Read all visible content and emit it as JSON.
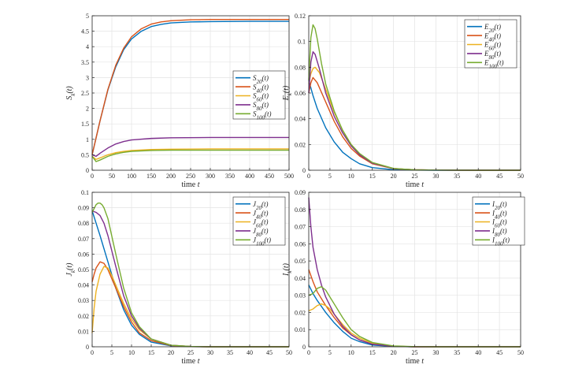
{
  "chart_data": [
    {
      "id": "S",
      "type": "line",
      "ylabel": "S_k(t)",
      "xlabel": "time t",
      "xlim": [
        0,
        500
      ],
      "ylim": [
        0,
        5
      ],
      "xticks": [
        0,
        50,
        100,
        150,
        200,
        250,
        300,
        350,
        400,
        450,
        500
      ],
      "yticks": [
        0,
        0.5,
        1,
        1.5,
        2,
        2.5,
        3,
        3.5,
        4,
        4.5,
        5
      ],
      "grid": true,
      "legend_position": "right-middle",
      "series": [
        {
          "name": "S_20(t)",
          "color": "#0072BD",
          "x": [
            0,
            10,
            20,
            40,
            60,
            80,
            100,
            125,
            150,
            175,
            200,
            250,
            300,
            400,
            500
          ],
          "y": [
            0.5,
            1.05,
            1.6,
            2.6,
            3.35,
            3.9,
            4.25,
            4.5,
            4.65,
            4.72,
            4.77,
            4.8,
            4.81,
            4.82,
            4.82
          ]
        },
        {
          "name": "S_40(t)",
          "color": "#D95319",
          "x": [
            0,
            10,
            20,
            40,
            60,
            80,
            100,
            125,
            150,
            175,
            200,
            250,
            300,
            400,
            500
          ],
          "y": [
            0.5,
            1.05,
            1.6,
            2.62,
            3.4,
            3.95,
            4.32,
            4.58,
            4.73,
            4.8,
            4.84,
            4.87,
            4.88,
            4.88,
            4.88
          ]
        },
        {
          "name": "S_60(t)",
          "color": "#EDB120",
          "x": [
            0,
            10,
            20,
            40,
            60,
            80,
            100,
            150,
            200,
            300,
            400,
            500
          ],
          "y": [
            0.45,
            0.35,
            0.4,
            0.5,
            0.57,
            0.61,
            0.64,
            0.67,
            0.68,
            0.69,
            0.69,
            0.69
          ]
        },
        {
          "name": "S_80(t)",
          "color": "#7E2F8E",
          "x": [
            0,
            10,
            20,
            40,
            60,
            80,
            100,
            150,
            200,
            300,
            400,
            500
          ],
          "y": [
            0.5,
            0.45,
            0.55,
            0.72,
            0.85,
            0.93,
            0.98,
            1.03,
            1.05,
            1.06,
            1.06,
            1.06
          ]
        },
        {
          "name": "S_100(t)",
          "color": "#77AC30",
          "x": [
            0,
            10,
            20,
            40,
            60,
            80,
            100,
            150,
            200,
            300,
            400,
            500
          ],
          "y": [
            0.45,
            0.28,
            0.33,
            0.45,
            0.53,
            0.58,
            0.61,
            0.64,
            0.65,
            0.65,
            0.65,
            0.65
          ]
        }
      ]
    },
    {
      "id": "E",
      "type": "line",
      "ylabel": "E_k(t)",
      "xlabel": "time t",
      "xlim": [
        0,
        50
      ],
      "ylim": [
        0,
        0.12
      ],
      "xticks": [
        0,
        5,
        10,
        15,
        20,
        25,
        30,
        35,
        40,
        45,
        50
      ],
      "yticks": [
        0,
        0.02,
        0.04,
        0.06,
        0.08,
        0.1,
        0.12
      ],
      "grid": true,
      "legend_position": "top-right",
      "series": [
        {
          "name": "E_20(t)",
          "color": "#0072BD",
          "x": [
            0,
            1,
            2,
            4,
            6,
            8,
            10,
            12,
            15,
            20,
            25,
            30,
            40,
            50
          ],
          "y": [
            0.07,
            0.058,
            0.048,
            0.033,
            0.022,
            0.014,
            0.009,
            0.005,
            0.002,
            0.0004,
            0.0001,
            0,
            0,
            0
          ]
        },
        {
          "name": "E_40(t)",
          "color": "#D95319",
          "x": [
            0,
            0.5,
            1,
            2,
            4,
            6,
            8,
            10,
            12,
            15,
            20,
            25,
            30,
            40,
            50
          ],
          "y": [
            0.06,
            0.068,
            0.072,
            0.068,
            0.053,
            0.038,
            0.026,
            0.017,
            0.011,
            0.005,
            0.0012,
            0.0003,
            0.0001,
            0,
            0
          ]
        },
        {
          "name": "E_60(t)",
          "color": "#EDB120",
          "x": [
            0,
            0.5,
            1,
            1.5,
            2.5,
            4,
            6,
            8,
            10,
            12,
            15,
            20,
            25,
            30,
            40,
            50
          ],
          "y": [
            0.067,
            0.075,
            0.079,
            0.08,
            0.076,
            0.063,
            0.045,
            0.031,
            0.02,
            0.012,
            0.0055,
            0.0013,
            0.0003,
            0.0001,
            0,
            0
          ]
        },
        {
          "name": "E_80(t)",
          "color": "#7E2F8E",
          "x": [
            0,
            0.5,
            1,
            1.5,
            2.5,
            4,
            6,
            8,
            10,
            12,
            15,
            20,
            25,
            30,
            40,
            50
          ],
          "y": [
            0.06,
            0.084,
            0.092,
            0.09,
            0.079,
            0.06,
            0.042,
            0.029,
            0.019,
            0.012,
            0.0055,
            0.0013,
            0.0003,
            0.0001,
            0,
            0
          ]
        },
        {
          "name": "E_100(t)",
          "color": "#77AC30",
          "x": [
            0,
            0.5,
            1,
            1.5,
            2,
            3,
            4,
            6,
            8,
            10,
            12,
            15,
            20,
            25,
            30,
            40,
            50
          ],
          "y": [
            0.07,
            0.103,
            0.113,
            0.11,
            0.102,
            0.083,
            0.067,
            0.046,
            0.031,
            0.02,
            0.013,
            0.006,
            0.0014,
            0.0003,
            0.0001,
            0,
            0
          ]
        }
      ]
    },
    {
      "id": "J",
      "type": "line",
      "ylabel": "J_k(t)",
      "xlabel": "time t",
      "xlim": [
        0,
        50
      ],
      "ylim": [
        0,
        0.1
      ],
      "xticks": [
        0,
        5,
        10,
        15,
        20,
        25,
        30,
        35,
        40,
        45,
        50
      ],
      "yticks": [
        0,
        0.01,
        0.02,
        0.03,
        0.04,
        0.05,
        0.06,
        0.07,
        0.08,
        0.09,
        0.1
      ],
      "grid": true,
      "legend_position": "top-right",
      "series": [
        {
          "name": "J_20(t)",
          "color": "#0072BD",
          "x": [
            0,
            1,
            2,
            4,
            6,
            8,
            10,
            12,
            15,
            20,
            25,
            30,
            40,
            50
          ],
          "y": [
            0.088,
            0.08,
            0.072,
            0.055,
            0.038,
            0.024,
            0.014,
            0.008,
            0.003,
            0.0006,
            0.0001,
            0,
            0,
            0
          ]
        },
        {
          "name": "J_40(t)",
          "color": "#D95319",
          "x": [
            0,
            0.5,
            1,
            2,
            3,
            4,
            6,
            8,
            10,
            12,
            15,
            20,
            25,
            30,
            40,
            50
          ],
          "y": [
            0.042,
            0.047,
            0.051,
            0.055,
            0.054,
            0.05,
            0.038,
            0.026,
            0.016,
            0.009,
            0.004,
            0.0008,
            0.0001,
            0,
            0,
            0
          ]
        },
        {
          "name": "J_60(t)",
          "color": "#EDB120",
          "x": [
            0,
            0.5,
            1,
            2,
            3,
            4,
            5,
            6,
            8,
            10,
            12,
            15,
            20,
            25,
            30,
            40,
            50
          ],
          "y": [
            0.009,
            0.025,
            0.036,
            0.047,
            0.052,
            0.051,
            0.046,
            0.04,
            0.028,
            0.018,
            0.011,
            0.005,
            0.001,
            0.0002,
            0,
            0,
            0
          ]
        },
        {
          "name": "J_80(t)",
          "color": "#7E2F8E",
          "x": [
            0,
            1,
            2,
            3,
            4,
            6,
            8,
            10,
            12,
            15,
            20,
            25,
            30,
            40,
            50
          ],
          "y": [
            0.088,
            0.087,
            0.085,
            0.08,
            0.072,
            0.052,
            0.033,
            0.02,
            0.012,
            0.005,
            0.001,
            0.0002,
            0,
            0,
            0
          ]
        },
        {
          "name": "J_100(t)",
          "color": "#77AC30",
          "x": [
            0,
            1,
            1.5,
            2,
            2.5,
            3,
            4,
            6,
            8,
            10,
            12,
            15,
            20,
            25,
            30,
            40,
            50
          ],
          "y": [
            0.087,
            0.092,
            0.093,
            0.093,
            0.092,
            0.09,
            0.083,
            0.06,
            0.038,
            0.022,
            0.013,
            0.005,
            0.001,
            0.0002,
            0,
            0,
            0
          ]
        }
      ]
    },
    {
      "id": "I",
      "type": "line",
      "ylabel": "I_k(t)",
      "xlabel": "time t",
      "xlim": [
        0,
        50
      ],
      "ylim": [
        0,
        0.09
      ],
      "xticks": [
        0,
        5,
        10,
        15,
        20,
        25,
        30,
        35,
        40,
        45,
        50
      ],
      "yticks": [
        0,
        0.01,
        0.02,
        0.03,
        0.04,
        0.05,
        0.06,
        0.07,
        0.08,
        0.09
      ],
      "grid": true,
      "legend_position": "top-right",
      "series": [
        {
          "name": "I_20(t)",
          "color": "#0072BD",
          "x": [
            0,
            1,
            2,
            4,
            6,
            8,
            10,
            12,
            15,
            20,
            25,
            30,
            40,
            50
          ],
          "y": [
            0.036,
            0.031,
            0.027,
            0.02,
            0.014,
            0.009,
            0.005,
            0.003,
            0.001,
            0.0002,
            0,
            0,
            0,
            0
          ]
        },
        {
          "name": "I_40(t)",
          "color": "#D95319",
          "x": [
            0,
            1,
            2,
            3,
            4,
            6,
            8,
            10,
            12,
            15,
            20,
            25,
            30,
            40,
            50
          ],
          "y": [
            0.045,
            0.038,
            0.032,
            0.028,
            0.024,
            0.017,
            0.011,
            0.007,
            0.004,
            0.0015,
            0.0003,
            0,
            0,
            0,
            0
          ]
        },
        {
          "name": "I_60(t)",
          "color": "#EDB120",
          "x": [
            0,
            1,
            2,
            3,
            4,
            5,
            6,
            8,
            10,
            12,
            15,
            20,
            25,
            30,
            40,
            50
          ],
          "y": [
            0.021,
            0.022,
            0.024,
            0.025,
            0.024,
            0.022,
            0.019,
            0.013,
            0.008,
            0.005,
            0.002,
            0.0004,
            0,
            0,
            0,
            0
          ]
        },
        {
          "name": "I_80(t)",
          "color": "#7E2F8E",
          "x": [
            0,
            0.5,
            1,
            2,
            3,
            4,
            6,
            8,
            10,
            12,
            15,
            20,
            25,
            30,
            40,
            50
          ],
          "y": [
            0.087,
            0.07,
            0.058,
            0.045,
            0.036,
            0.029,
            0.019,
            0.012,
            0.007,
            0.004,
            0.0015,
            0.0003,
            0,
            0,
            0,
            0
          ]
        },
        {
          "name": "I_100(t)",
          "color": "#77AC30",
          "x": [
            0,
            1,
            2,
            3,
            4,
            5,
            6,
            8,
            10,
            12,
            15,
            20,
            25,
            30,
            40,
            50
          ],
          "y": [
            0.03,
            0.031,
            0.034,
            0.035,
            0.033,
            0.029,
            0.025,
            0.017,
            0.01,
            0.006,
            0.0025,
            0.0005,
            0.0001,
            0,
            0,
            0
          ]
        }
      ]
    }
  ]
}
